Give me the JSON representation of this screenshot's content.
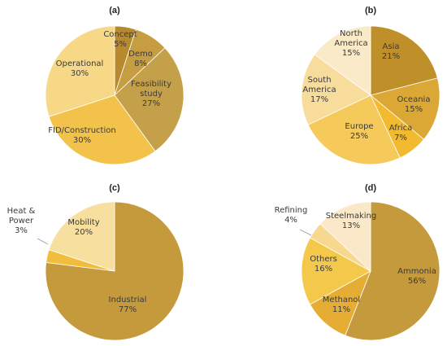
{
  "chart_data": [
    {
      "type": "pie",
      "title": "(a)",
      "slices": [
        {
          "label": "Concept",
          "value": 5,
          "text": "5%",
          "color": "#b8892f"
        },
        {
          "label": "Demo",
          "value": 8,
          "text": "8%",
          "color": "#c79d42"
        },
        {
          "label": "Feasibility study",
          "value": 27,
          "text": "27%",
          "color": "#c4a04a"
        },
        {
          "label": "FID/Construction",
          "value": 30,
          "text": "30%",
          "color": "#f3c24a"
        },
        {
          "label": "Operational",
          "value": 30,
          "text": "30%",
          "color": "#f6d886"
        }
      ]
    },
    {
      "type": "pie",
      "title": "(b)",
      "slices": [
        {
          "label": "Asia",
          "value": 21,
          "text": "21%",
          "color": "#bf8f2a"
        },
        {
          "label": "Oceania",
          "value": 15,
          "text": "15%",
          "color": "#dba836"
        },
        {
          "label": "Africa",
          "value": 7,
          "text": "7%",
          "color": "#f1ba2f"
        },
        {
          "label": "Europe",
          "value": 25,
          "text": "25%",
          "color": "#f5c95a"
        },
        {
          "label": "South America",
          "value": 17,
          "text": "17%",
          "color": "#f7dc9b"
        },
        {
          "label": "North America",
          "value": 15,
          "text": "15%",
          "color": "#faeac8"
        }
      ]
    },
    {
      "type": "pie",
      "title": "(c)",
      "slices": [
        {
          "label": "Industrial",
          "value": 77,
          "text": "77%",
          "color": "#c49a3c"
        },
        {
          "label": "Heat & Power",
          "value": 3,
          "text": "3%",
          "color": "#f0bd3c"
        },
        {
          "label": "Mobility",
          "value": 20,
          "text": "20%",
          "color": "#f7dfa0"
        }
      ]
    },
    {
      "type": "pie",
      "title": "(d)",
      "slices": [
        {
          "label": "Ammonia",
          "value": 56,
          "text": "56%",
          "color": "#c49a3c"
        },
        {
          "label": "Methanol",
          "value": 11,
          "text": "11%",
          "color": "#e6ad35"
        },
        {
          "label": "Others",
          "value": 16,
          "text": "16%",
          "color": "#f4c94b"
        },
        {
          "label": "Refining",
          "value": 4,
          "text": "4%",
          "color": "#f6d98e"
        },
        {
          "label": "Steelmaking",
          "value": 13,
          "text": "13%",
          "color": "#fae8c8"
        }
      ]
    }
  ]
}
